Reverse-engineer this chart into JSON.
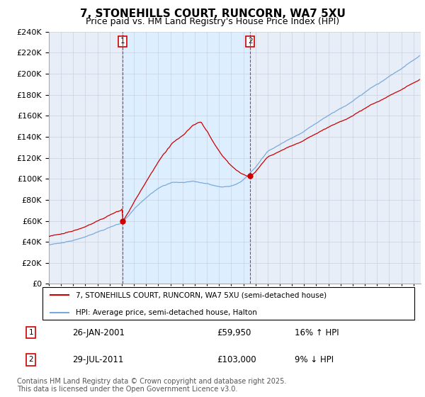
{
  "title1": "7, STONEHILLS COURT, RUNCORN, WA7 5XU",
  "title2": "Price paid vs. HM Land Registry's House Price Index (HPI)",
  "ylim": [
    0,
    240000
  ],
  "yticks": [
    0,
    20000,
    40000,
    60000,
    80000,
    100000,
    120000,
    140000,
    160000,
    180000,
    200000,
    220000,
    240000
  ],
  "sale1_year": 2001.07,
  "sale1_price": 59950,
  "sale2_year": 2011.57,
  "sale2_price": 103000,
  "red_line_color": "#cc0000",
  "blue_line_color": "#7aaadd",
  "shade_color": "#ddeeff",
  "vline_color": "#cc0000",
  "legend_label1": "7, STONEHILLS COURT, RUNCORN, WA7 5XU (semi-detached house)",
  "legend_label2": "HPI: Average price, semi-detached house, Halton",
  "footer": "Contains HM Land Registry data © Crown copyright and database right 2025.\nThis data is licensed under the Open Government Licence v3.0.",
  "plot_bg_color": "#e8eef8",
  "grid_color": "#c8d0e0",
  "title_fontsize": 11,
  "subtitle_fontsize": 9,
  "tick_fontsize": 8,
  "legend_fontsize": 8,
  "footer_fontsize": 7
}
